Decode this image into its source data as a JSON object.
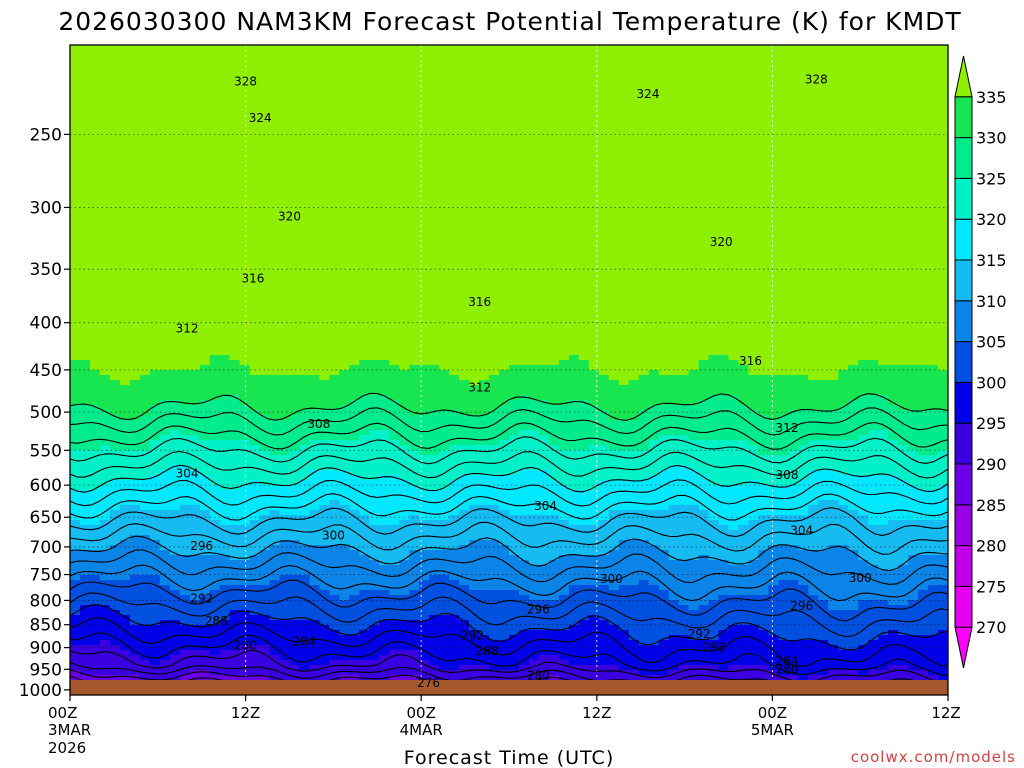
{
  "chart_data": {
    "type": "heatmap",
    "title": "2026030300 NAM3KM Forecast Potential Temperature (K) for KMDT",
    "xlabel": "Forecast Time (UTC)",
    "ylabel": "",
    "credit": "coolwx.com/models",
    "x_ticks": [
      {
        "hour": 0,
        "line1": "00Z",
        "line2": "3MAR",
        "line3": "2026"
      },
      {
        "hour": 12,
        "line1": "12Z",
        "line2": "",
        "line3": ""
      },
      {
        "hour": 24,
        "line1": "00Z",
        "line2": "4MAR",
        "line3": ""
      },
      {
        "hour": 36,
        "line1": "12Z",
        "line2": "",
        "line3": ""
      },
      {
        "hour": 48,
        "line1": "00Z",
        "line2": "5MAR",
        "line3": ""
      },
      {
        "hour": 60,
        "line1": "12Z",
        "line2": "",
        "line3": ""
      }
    ],
    "x_range": [
      0,
      60
    ],
    "y_ticks": [
      "250",
      "300",
      "350",
      "400",
      "450",
      "500",
      "550",
      "600",
      "650",
      "700",
      "750",
      "800",
      "850",
      "900",
      "950",
      "1000"
    ],
    "y_range_hPa": [
      200,
      1013
    ],
    "colorbar": {
      "levels": [
        "270",
        "275",
        "280",
        "285",
        "290",
        "295",
        "300",
        "305",
        "310",
        "315",
        "320",
        "325",
        "330",
        "335"
      ],
      "colors": [
        "#ff00ff",
        "#e400f0",
        "#c000e8",
        "#9a00e4",
        "#6a00e4",
        "#3a00e0",
        "#0000e8",
        "#0050e0",
        "#0a84e6",
        "#16bbf2",
        "#00e8ff",
        "#00f0c8",
        "#00ec8c",
        "#18e650",
        "#8ef000"
      ]
    },
    "contour_labels": [
      {
        "label": "328",
        "hour": 12.0,
        "p": 219
      },
      {
        "label": "328",
        "hour": 51.0,
        "p": 218
      },
      {
        "label": "324",
        "hour": 13.0,
        "p": 240
      },
      {
        "label": "324",
        "hour": 39.5,
        "p": 226
      },
      {
        "label": "320",
        "hour": 15.0,
        "p": 307
      },
      {
        "label": "320",
        "hour": 44.5,
        "p": 327
      },
      {
        "label": "316",
        "hour": 12.5,
        "p": 358
      },
      {
        "label": "316",
        "hour": 28.0,
        "p": 380
      },
      {
        "label": "316",
        "hour": 46.5,
        "p": 440
      },
      {
        "label": "312",
        "hour": 8.0,
        "p": 406
      },
      {
        "label": "312",
        "hour": 28.0,
        "p": 470
      },
      {
        "label": "312",
        "hour": 49.0,
        "p": 520
      },
      {
        "label": "308",
        "hour": 17.0,
        "p": 515
      },
      {
        "label": "308",
        "hour": 49.0,
        "p": 585
      },
      {
        "label": "304",
        "hour": 8.0,
        "p": 583
      },
      {
        "label": "304",
        "hour": 32.5,
        "p": 632
      },
      {
        "label": "304",
        "hour": 50.0,
        "p": 672
      },
      {
        "label": "300",
        "hour": 18.0,
        "p": 680
      },
      {
        "label": "300",
        "hour": 37.0,
        "p": 758
      },
      {
        "label": "300",
        "hour": 54.0,
        "p": 756
      },
      {
        "label": "296",
        "hour": 9.0,
        "p": 698
      },
      {
        "label": "296",
        "hour": 32.0,
        "p": 818
      },
      {
        "label": "296",
        "hour": 50.0,
        "p": 811
      },
      {
        "label": "292",
        "hour": 9.0,
        "p": 796
      },
      {
        "label": "292",
        "hour": 27.5,
        "p": 873
      },
      {
        "label": "292",
        "hour": 43.0,
        "p": 870
      },
      {
        "label": "288",
        "hour": 10.0,
        "p": 842
      },
      {
        "label": "288",
        "hour": 28.5,
        "p": 908
      },
      {
        "label": "288",
        "hour": 44.0,
        "p": 900
      },
      {
        "label": "284",
        "hour": 16.0,
        "p": 886
      },
      {
        "label": "284",
        "hour": 49.0,
        "p": 931
      },
      {
        "label": "280",
        "hour": 12.0,
        "p": 895
      },
      {
        "label": "280",
        "hour": 32.0,
        "p": 965
      },
      {
        "label": "280",
        "hour": 49.0,
        "p": 950
      },
      {
        "label": "276",
        "hour": 24.5,
        "p": 983
      }
    ]
  }
}
